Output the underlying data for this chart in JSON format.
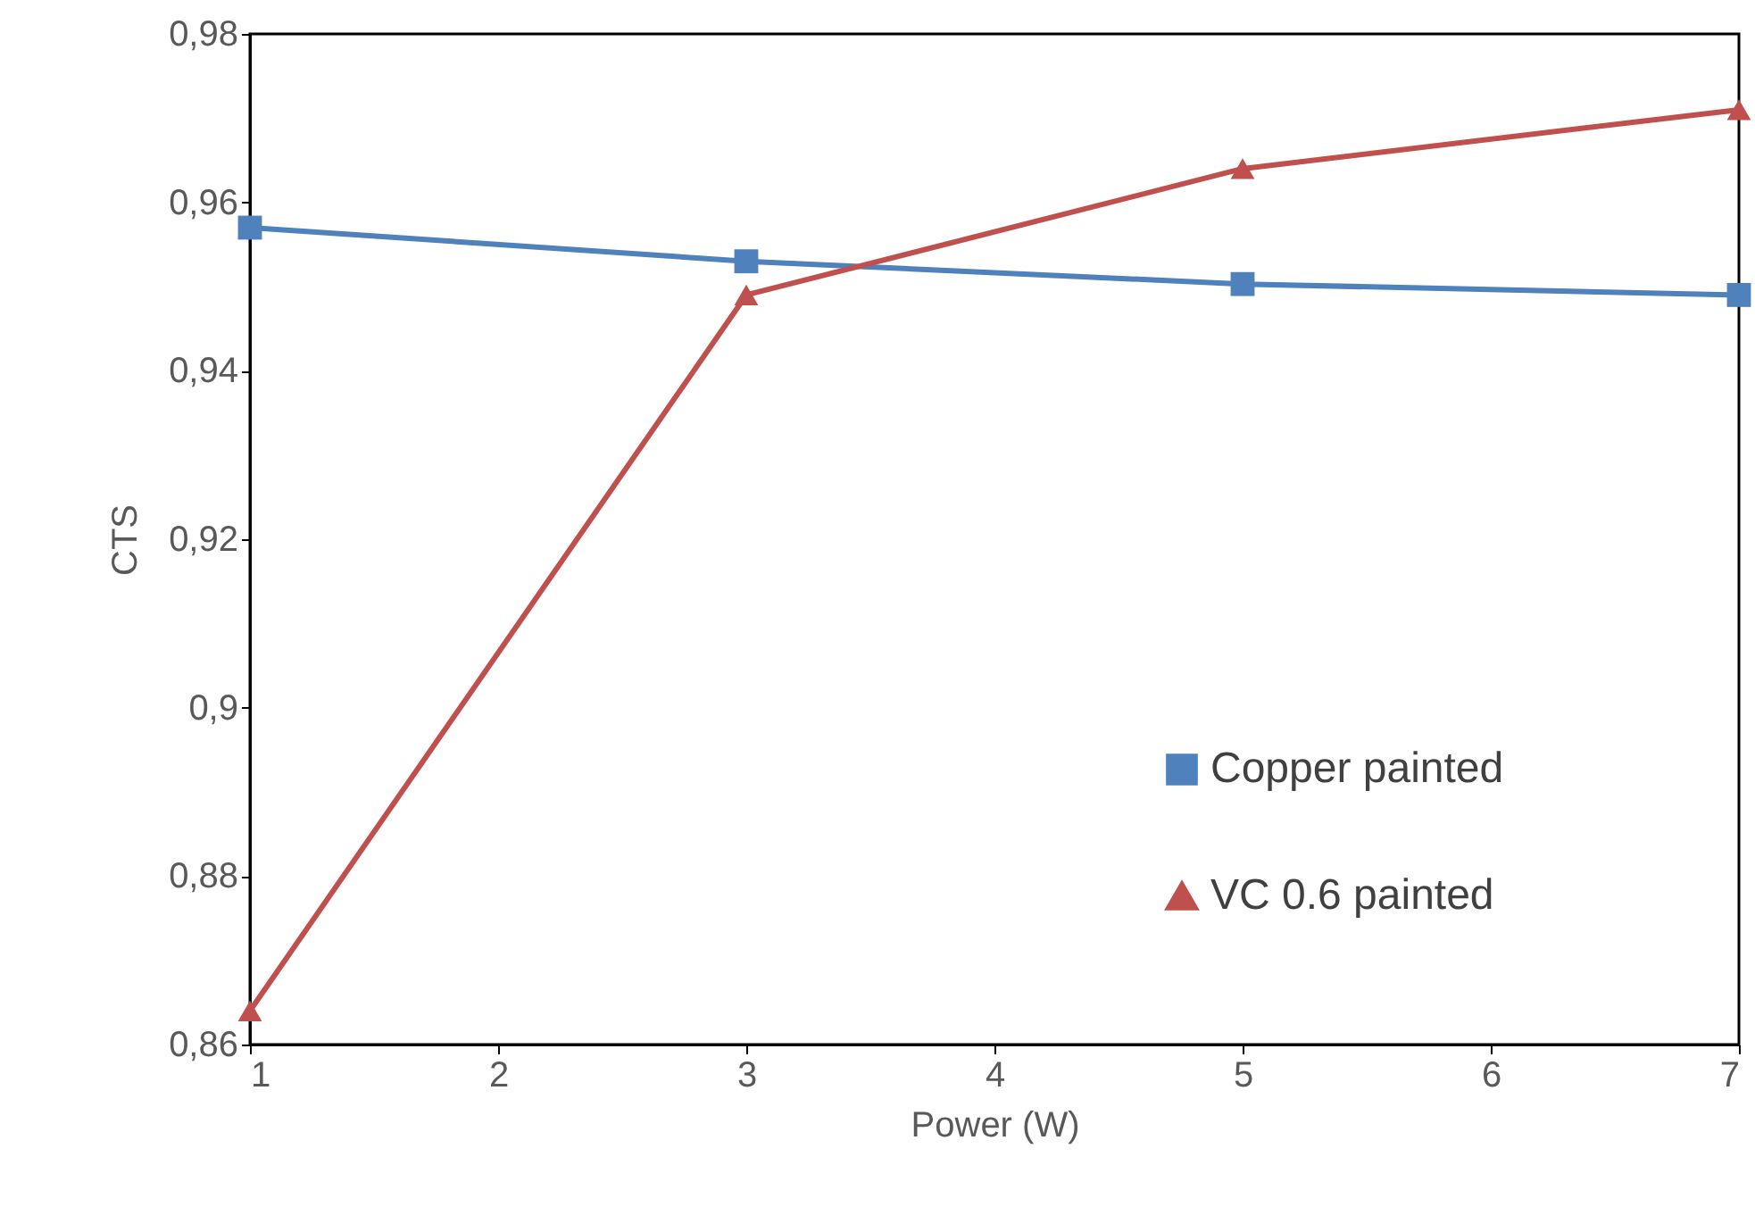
{
  "chart_data": {
    "type": "line",
    "xlabel": "Power (W)",
    "ylabel": "CTS",
    "x": [
      1,
      3,
      5,
      7
    ],
    "series": [
      {
        "name": "Copper painted",
        "color": "#4f81bd",
        "marker": "square",
        "values": [
          0.957,
          0.953,
          0.9503,
          0.949
        ]
      },
      {
        "name": "VC 0.6 painted",
        "color": "#c0504d",
        "marker": "triangle",
        "values": [
          0.864,
          0.949,
          0.964,
          0.971
        ]
      }
    ],
    "xlim": [
      1,
      7
    ],
    "xticks": [
      1,
      2,
      3,
      4,
      5,
      6,
      7
    ],
    "ylim": [
      0.86,
      0.98
    ],
    "yticks": [
      {
        "value": 0.86,
        "label": "0,86"
      },
      {
        "value": 0.88,
        "label": "0,88"
      },
      {
        "value": 0.9,
        "label": "0,9"
      },
      {
        "value": 0.92,
        "label": "0,92"
      },
      {
        "value": 0.94,
        "label": "0,94"
      },
      {
        "value": 0.96,
        "label": "0,96"
      },
      {
        "value": 0.98,
        "label": "0,98"
      }
    ],
    "grid": false,
    "legend": "right",
    "line_style": "solid"
  }
}
